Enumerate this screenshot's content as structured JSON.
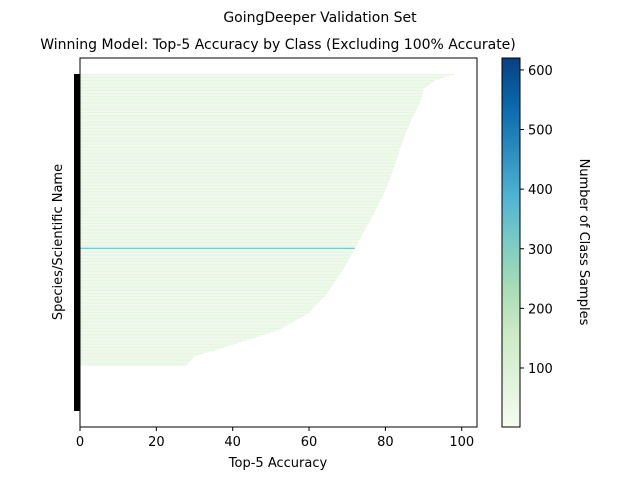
{
  "chart_data": {
    "type": "bar",
    "orientation": "horizontal",
    "title": "GoingDeeper Validation Set",
    "subtitle": "Winning Model: Top-5 Accuracy by Class (Excluding 100% Accurate)",
    "xlabel": "Top-5 Accuracy",
    "ylabel": "Species/Scientific Name",
    "xlim": [
      0,
      104
    ],
    "x_ticks": [
      "0",
      "20",
      "40",
      "60",
      "80",
      "100"
    ],
    "colorbar": {
      "label": "Number of Class Samples",
      "range": [
        1,
        620
      ],
      "ticks": [
        "100",
        "200",
        "300",
        "400",
        "500",
        "600"
      ],
      "colormap": "GnBu",
      "stops": [
        "#f7fcf0",
        "#e0f3db",
        "#ccebc5",
        "#a8ddb5",
        "#7bccc4",
        "#4eb3d3",
        "#2b8cbe",
        "#0868ac",
        "#084081"
      ]
    },
    "grid": false,
    "bars": {
      "count": 200,
      "accuracy_profile": [
        [
          0,
          98
        ],
        [
          0.02,
          93
        ],
        [
          0.05,
          90
        ],
        [
          0.1,
          89
        ],
        [
          0.18,
          86
        ],
        [
          0.25,
          84
        ],
        [
          0.33,
          82
        ],
        [
          0.4,
          80
        ],
        [
          0.48,
          77
        ],
        [
          0.55,
          74
        ],
        [
          0.6,
          72
        ],
        [
          0.67,
          69
        ],
        [
          0.75,
          65
        ],
        [
          0.82,
          60
        ],
        [
          0.88,
          52
        ],
        [
          0.93,
          40
        ],
        [
          0.97,
          30
        ],
        [
          1.0,
          28
        ]
      ],
      "typical_samples": 60,
      "highlight": {
        "rank_fraction": 0.6,
        "accuracy": 72,
        "samples": 360
      }
    }
  }
}
